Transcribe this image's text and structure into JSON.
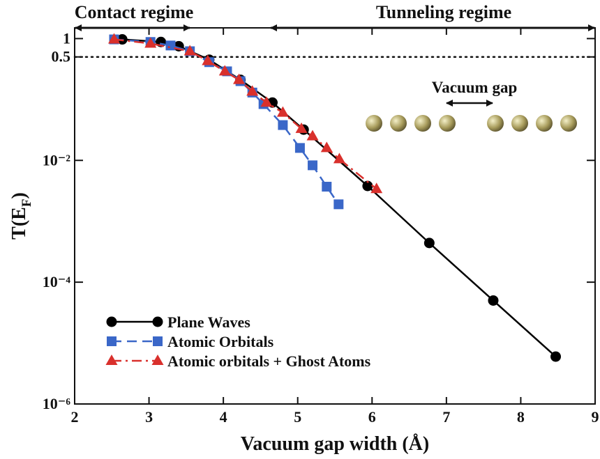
{
  "chart_data": {
    "type": "line",
    "x_label": "Vacuum gap width (Å)",
    "y_label": [
      "T(E",
      "F",
      ")"
    ],
    "xlim": [
      2,
      9
    ],
    "xticks": [
      2,
      3,
      4,
      5,
      6,
      7,
      8,
      9
    ],
    "ylim": [
      1e-06,
      1.5
    ],
    "yscale": "log",
    "yticks": [
      {
        "value": 1e-06,
        "label": "10⁻⁶"
      },
      {
        "value": 0.0001,
        "label": "10⁻⁴"
      },
      {
        "value": 0.01,
        "label": "10⁻²"
      },
      0.5,
      1
    ],
    "hlines": [
      0.5
    ],
    "grid": false,
    "legend": "lower left",
    "annotations": [
      "Contact regime",
      "Tunneling regime",
      "Vacuum gap"
    ],
    "series": [
      {
        "name": "Plane Waves",
        "color": "#000000",
        "line_style": "solid",
        "marker": "circle",
        "x": [
          2.64,
          3.16,
          3.4,
          3.81,
          4.23,
          4.66,
          5.08,
          5.94,
          6.77,
          7.63,
          8.47
        ],
        "values": [
          0.97,
          0.88,
          0.75,
          0.45,
          0.21,
          0.089,
          0.032,
          0.0038,
          0.00044,
          5e-05,
          6e-06
        ]
      },
      {
        "name": "Atomic Orbitals",
        "color": "#3a67c8",
        "line_style": "dashed",
        "marker": "square",
        "x": [
          2.53,
          3.02,
          3.29,
          3.55,
          3.81,
          4.05,
          4.23,
          4.39,
          4.54,
          4.8,
          5.03,
          5.2,
          5.39,
          5.55
        ],
        "values": [
          0.97,
          0.88,
          0.77,
          0.62,
          0.41,
          0.29,
          0.2,
          0.13,
          0.084,
          0.038,
          0.016,
          0.0083,
          0.0037,
          0.0019
        ]
      },
      {
        "name": "Atomic orbitals + Ghost Atoms",
        "color": "#d9302c",
        "line_style": "dashdot",
        "marker": "triangle",
        "x": [
          2.53,
          3.02,
          3.55,
          3.79,
          4.02,
          4.21,
          4.39,
          4.58,
          4.8,
          5.05,
          5.2,
          5.39,
          5.56,
          6.06
        ],
        "values": [
          0.97,
          0.83,
          0.62,
          0.43,
          0.29,
          0.21,
          0.135,
          0.089,
          0.061,
          0.033,
          0.025,
          0.016,
          0.0105,
          0.0034
        ]
      }
    ]
  }
}
